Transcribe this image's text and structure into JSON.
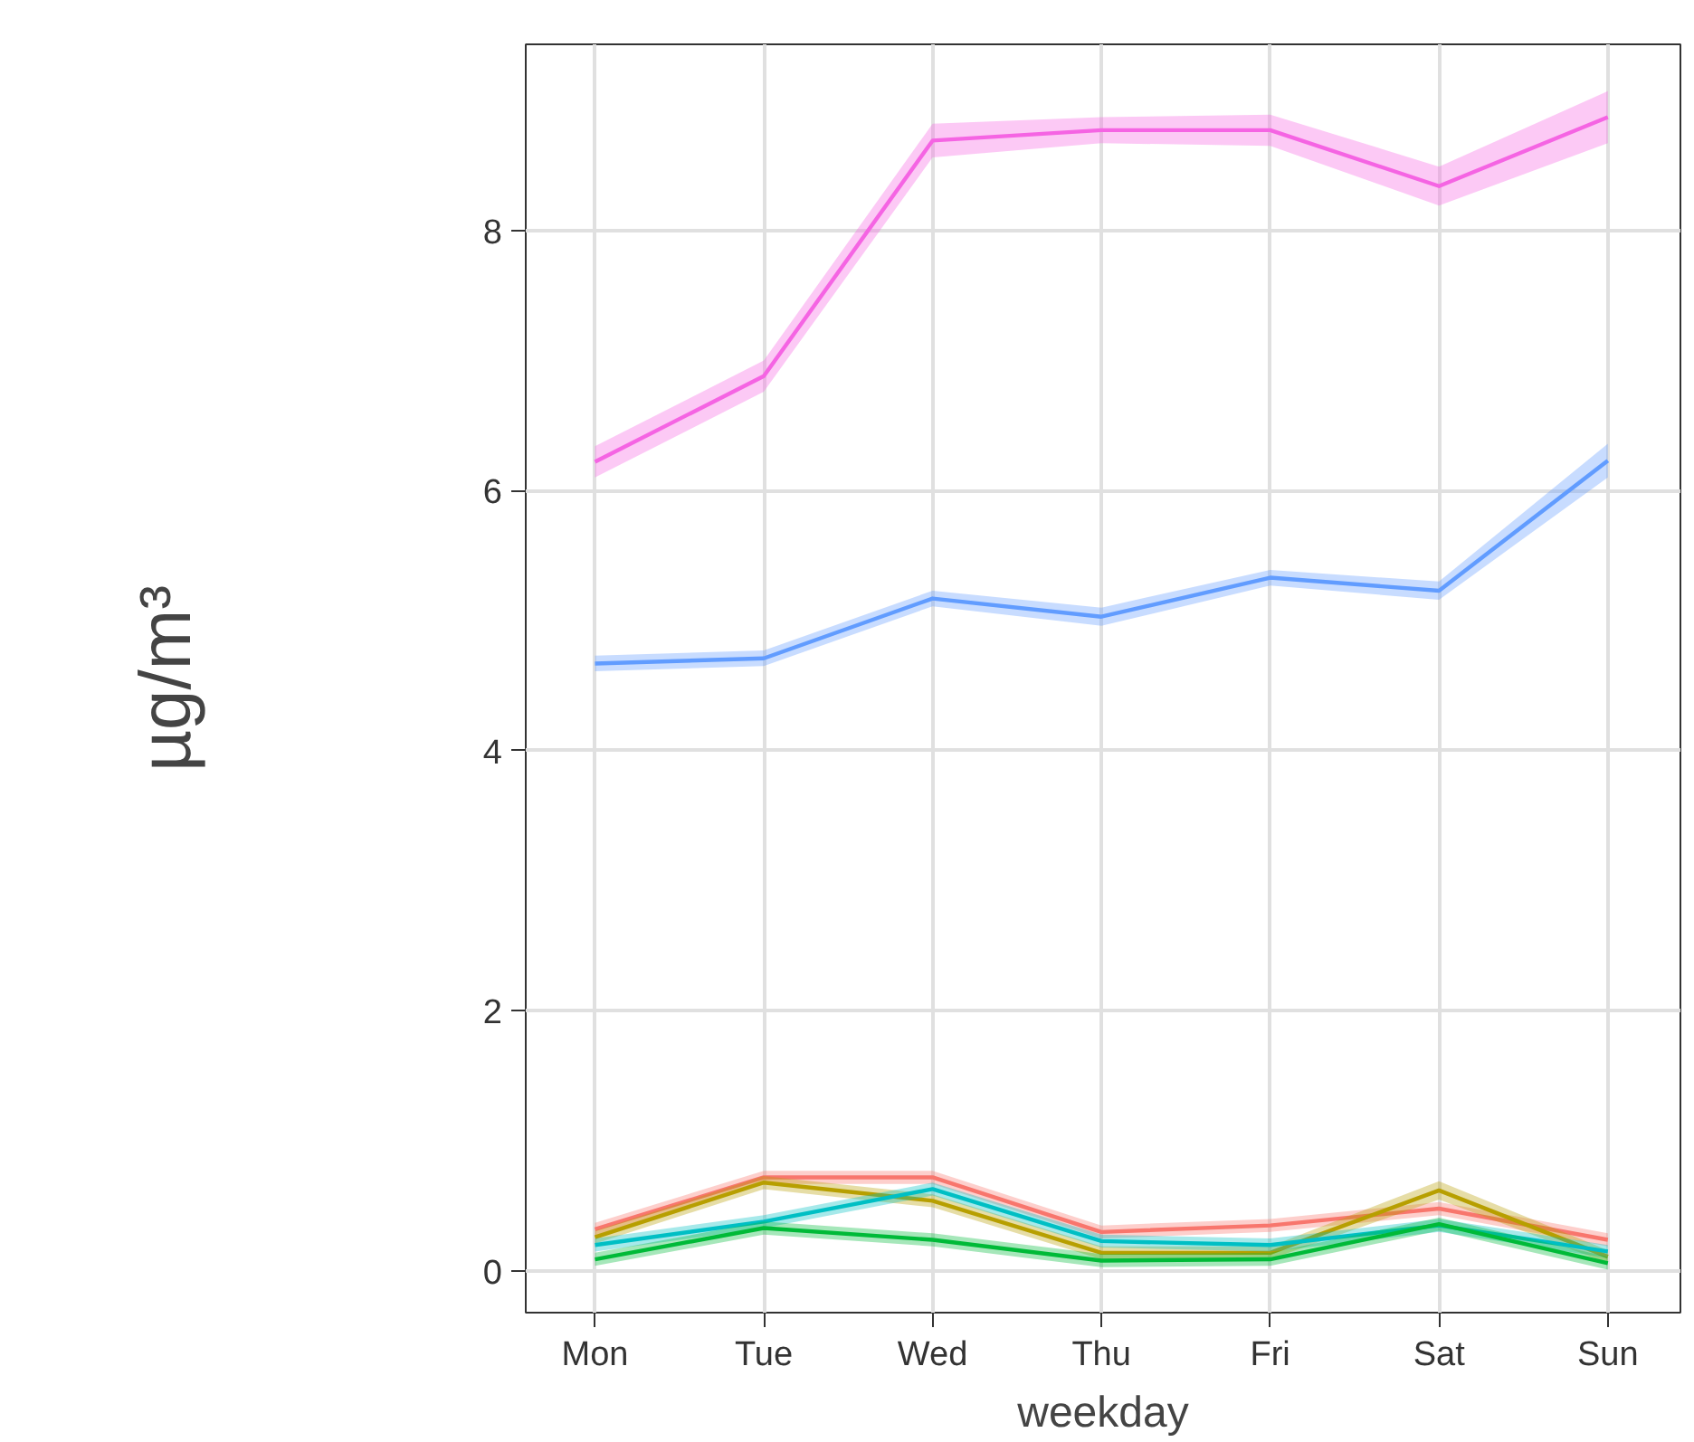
{
  "chart_data": {
    "type": "line",
    "xlabel": "weekday",
    "ylabel": "µg/m³",
    "categories": [
      "Mon",
      "Tue",
      "Wed",
      "Thu",
      "Fri",
      "Sat",
      "Sun"
    ],
    "ylim": [
      -0.32,
      9.43
    ],
    "yticks": [
      0,
      2,
      4,
      6,
      8
    ],
    "grid": true,
    "line_style": "solid",
    "marker": "none",
    "series": [
      {
        "color": "#f564e3",
        "values": [
          6.22,
          6.88,
          8.69,
          8.77,
          8.77,
          8.34,
          8.87
        ],
        "lower": [
          6.1,
          6.76,
          8.56,
          8.67,
          8.65,
          8.19,
          8.67
        ],
        "upper": [
          6.34,
          7.0,
          8.82,
          8.87,
          8.89,
          8.49,
          9.07
        ]
      },
      {
        "color": "#619cff",
        "values": [
          4.67,
          4.71,
          5.17,
          5.03,
          5.33,
          5.23,
          6.23
        ],
        "lower": [
          4.61,
          4.65,
          5.11,
          4.96,
          5.27,
          5.16,
          6.1
        ],
        "upper": [
          4.73,
          4.77,
          5.23,
          5.1,
          5.39,
          5.3,
          6.36
        ]
      },
      {
        "color": "#f8766d",
        "values": [
          0.32,
          0.72,
          0.72,
          0.3,
          0.35,
          0.48,
          0.24
        ],
        "lower": [
          0.27,
          0.67,
          0.67,
          0.25,
          0.3,
          0.43,
          0.19
        ],
        "upper": [
          0.37,
          0.77,
          0.77,
          0.35,
          0.4,
          0.53,
          0.29
        ]
      },
      {
        "color": "#b79f00",
        "values": [
          0.26,
          0.68,
          0.54,
          0.14,
          0.14,
          0.62,
          0.11
        ],
        "lower": [
          0.21,
          0.63,
          0.49,
          0.09,
          0.09,
          0.55,
          0.06
        ],
        "upper": [
          0.31,
          0.73,
          0.59,
          0.19,
          0.19,
          0.69,
          0.16
        ]
      },
      {
        "color": "#00bfc4",
        "values": [
          0.2,
          0.38,
          0.63,
          0.23,
          0.2,
          0.35,
          0.15
        ],
        "lower": [
          0.15,
          0.33,
          0.58,
          0.18,
          0.15,
          0.3,
          0.1
        ],
        "upper": [
          0.25,
          0.43,
          0.68,
          0.28,
          0.25,
          0.4,
          0.2
        ]
      },
      {
        "color": "#00ba38",
        "values": [
          0.09,
          0.33,
          0.24,
          0.08,
          0.09,
          0.36,
          0.06
        ],
        "lower": [
          0.04,
          0.28,
          0.19,
          0.03,
          0.04,
          0.31,
          0.01
        ],
        "upper": [
          0.14,
          0.38,
          0.29,
          0.13,
          0.14,
          0.41,
          0.11
        ]
      }
    ]
  }
}
